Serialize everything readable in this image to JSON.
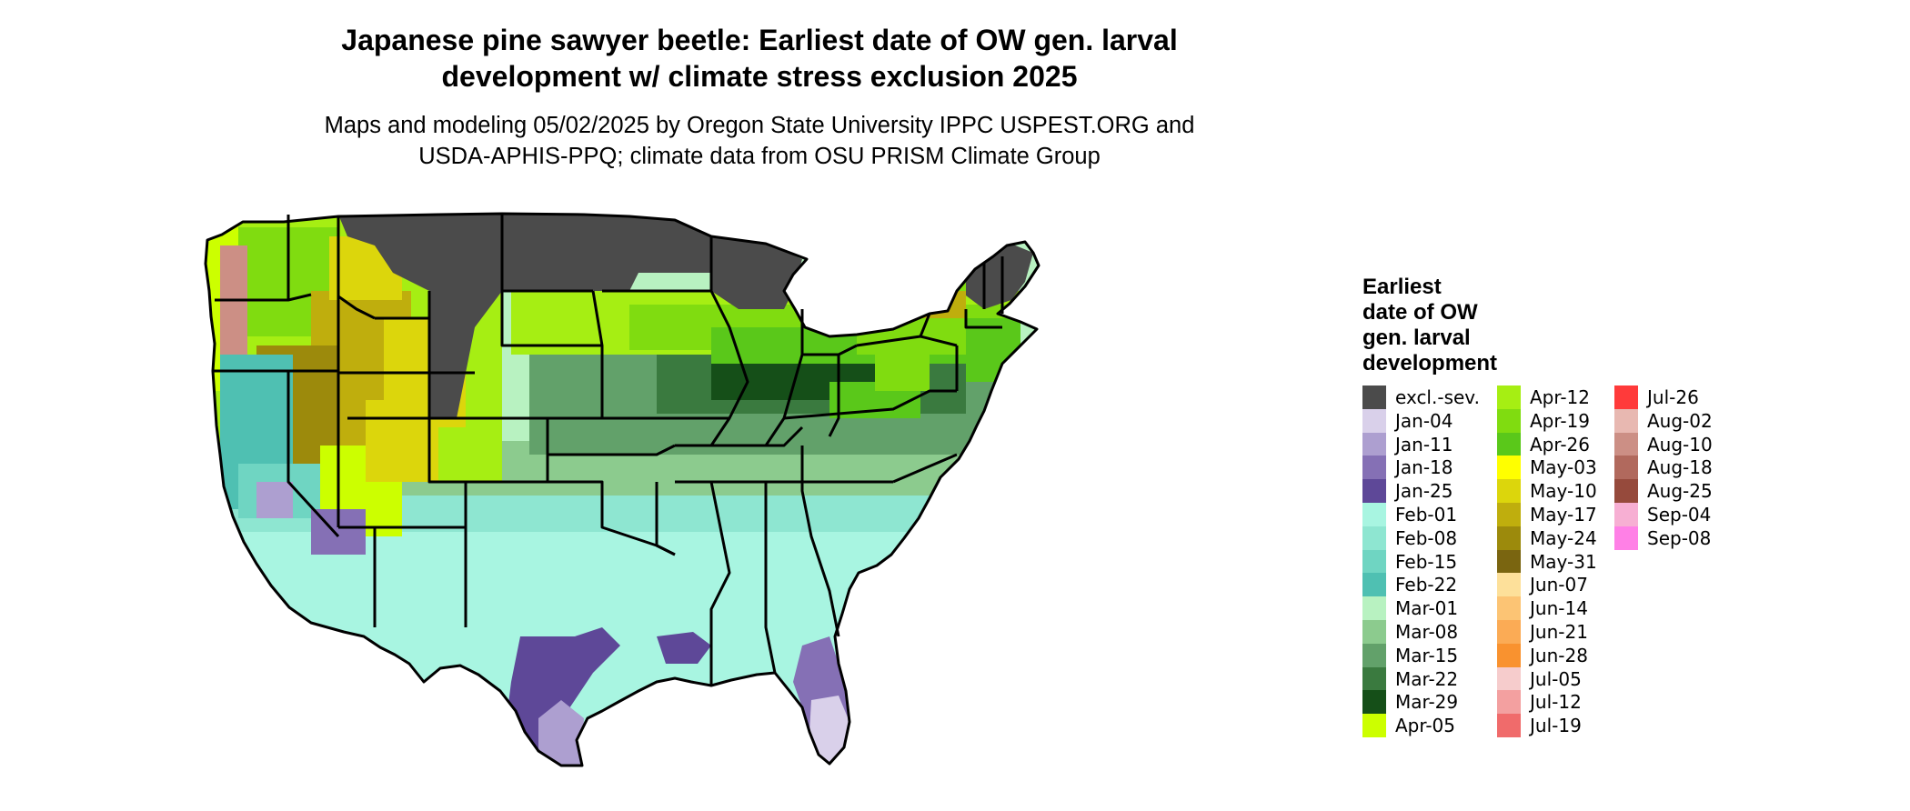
{
  "title": {
    "line1": "Japanese pine sawyer beetle: Earliest date of OW gen. larval",
    "line2": "development w/ climate stress exclusion 2025"
  },
  "subtitle": {
    "line1": "Maps and modeling 05/02/2025 by Oregon State University IPPC USPEST.ORG and",
    "line2": "USDA-APHIS-PPQ; climate data from OSU PRISM Climate Group"
  },
  "legend": {
    "title_lines": [
      "Earliest",
      "date of OW",
      "gen. larval",
      "development"
    ],
    "columns": [
      [
        {
          "label": "excl.-sev.",
          "color": "#4b4b4b"
        },
        {
          "label": "Jan-04",
          "color": "#d9d0ea"
        },
        {
          "label": "Jan-11",
          "color": "#ad9fd0"
        },
        {
          "label": "Jan-18",
          "color": "#8570b5"
        },
        {
          "label": "Jan-25",
          "color": "#5e4898"
        },
        {
          "label": "Feb-01",
          "color": "#a8f5e1"
        },
        {
          "label": "Feb-08",
          "color": "#8ee6d1"
        },
        {
          "label": "Feb-15",
          "color": "#6fd5c2"
        },
        {
          "label": "Feb-22",
          "color": "#4fc0b2"
        },
        {
          "label": "Mar-01",
          "color": "#b8f2c1"
        },
        {
          "label": "Mar-08",
          "color": "#8ccb8e"
        },
        {
          "label": "Mar-15",
          "color": "#62a16a"
        },
        {
          "label": "Mar-22",
          "color": "#3a7a3f"
        },
        {
          "label": "Mar-29",
          "color": "#154f18"
        },
        {
          "label": "Apr-05",
          "color": "#ccff00"
        }
      ],
      [
        {
          "label": "Apr-12",
          "color": "#a6ee13"
        },
        {
          "label": "Apr-19",
          "color": "#80dc10"
        },
        {
          "label": "Apr-26",
          "color": "#5ac81a"
        },
        {
          "label": "May-03",
          "color": "#ffff00"
        },
        {
          "label": "May-10",
          "color": "#dcd60c"
        },
        {
          "label": "May-17",
          "color": "#bfae0d"
        },
        {
          "label": "May-24",
          "color": "#9c8a0c"
        },
        {
          "label": "May-31",
          "color": "#7a6510"
        },
        {
          "label": "Jun-07",
          "color": "#fde09a"
        },
        {
          "label": "Jun-14",
          "color": "#fcc474"
        },
        {
          "label": "Jun-21",
          "color": "#fbab55"
        },
        {
          "label": "Jun-28",
          "color": "#f9922f"
        },
        {
          "label": "Jul-05",
          "color": "#f6cccc"
        },
        {
          "label": "Jul-12",
          "color": "#f3a0a0"
        },
        {
          "label": "Jul-19",
          "color": "#f06b6b"
        }
      ],
      [
        {
          "label": "Jul-26",
          "color": "#ff3a3a"
        },
        {
          "label": "Aug-02",
          "color": "#e8b8b1"
        },
        {
          "label": "Aug-10",
          "color": "#cc8f85"
        },
        {
          "label": "Aug-18",
          "color": "#b1695d"
        },
        {
          "label": "Aug-25",
          "color": "#964a3c"
        },
        {
          "label": "Sep-04",
          "color": "#f7afd3"
        },
        {
          "label": "Sep-08",
          "color": "#ff80e6"
        }
      ]
    ]
  }
}
